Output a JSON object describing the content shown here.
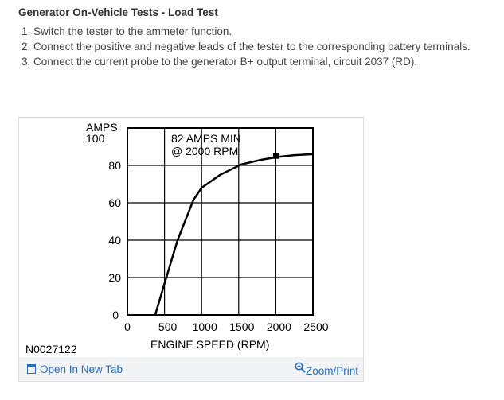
{
  "section_title": "Generator On-Vehicle Tests - Load Test",
  "steps": [
    "1. Switch the tester to the ammeter function.",
    "2. Connect the positive and negative leads of the tester to the corresponding battery terminals.",
    "3. Connect the current probe to the generator B+ output terminal, circuit 2037 (RD)."
  ],
  "figure": {
    "id": "N0027122",
    "open_label": "Open In New Tab",
    "zoom_label": "Zoom/Print",
    "link_color": "#2a6bb5",
    "open_icon": "open-new-tab-icon",
    "zoom_icon": "magnifier-plus-icon"
  },
  "chart_data": {
    "type": "line",
    "ylabel": "AMPS",
    "xlabel": "ENGINE SPEED (RPM)",
    "annotation_line1": "82 AMPS MIN",
    "annotation_line2": "@ 2000 RPM",
    "xlim": [
      0,
      2500
    ],
    "ylim": [
      0,
      100
    ],
    "xticks": [
      "0",
      "500",
      "1000",
      "1500",
      "2000",
      "2500"
    ],
    "yticks": [
      "0",
      "20",
      "40",
      "60",
      "80",
      "100"
    ],
    "grid": true,
    "x": [
      375,
      525,
      676,
      890,
      1000,
      1250,
      1535,
      1800,
      2028,
      2250,
      2500
    ],
    "y": [
      0,
      20,
      40,
      61.5,
      68,
      75,
      80.5,
      83,
      84.5,
      85.5,
      86
    ],
    "marker": {
      "x": 2000,
      "y": 85
    }
  }
}
